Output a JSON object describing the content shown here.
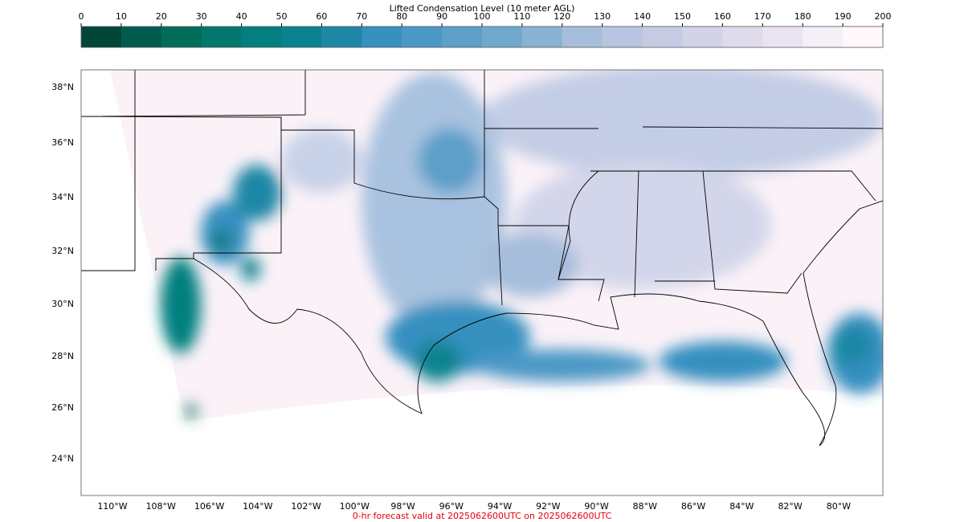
{
  "colorbar": {
    "title": "Lifted Condensation Level (10 meter AGL)",
    "ticks": [
      0,
      10,
      20,
      30,
      40,
      50,
      60,
      70,
      80,
      90,
      100,
      110,
      120,
      130,
      140,
      150,
      160,
      170,
      180,
      190,
      200
    ],
    "colors": [
      "#014636",
      "#015c50",
      "#016c59",
      "#02776c",
      "#027f7f",
      "#0a8390",
      "#1e87a6",
      "#3690c0",
      "#4b98c6",
      "#5c9fc9",
      "#71a8cd",
      "#89b2d4",
      "#a6bddb",
      "#b8c5e0",
      "#c7cae3",
      "#d3d3e8",
      "#e0daed",
      "#ebe3f1",
      "#f5eff7",
      "#fff7fb"
    ]
  },
  "map": {
    "lat_ticks": [
      {
        "value": 38,
        "label": "38°N"
      },
      {
        "value": 36,
        "label": "36°N"
      },
      {
        "value": 34,
        "label": "34°N"
      },
      {
        "value": 32,
        "label": "32°N"
      },
      {
        "value": 30,
        "label": "30°N"
      },
      {
        "value": 28,
        "label": "28°N"
      },
      {
        "value": 26,
        "label": "26°N"
      },
      {
        "value": 24,
        "label": "24°N"
      }
    ],
    "lon_ticks": [
      {
        "value": -110,
        "label": "110°W"
      },
      {
        "value": -108,
        "label": "108°W"
      },
      {
        "value": -106,
        "label": "106°W"
      },
      {
        "value": -104,
        "label": "104°W"
      },
      {
        "value": -102,
        "label": "102°W"
      },
      {
        "value": -100,
        "label": "100°W"
      },
      {
        "value": -98,
        "label": "98°W"
      },
      {
        "value": -96,
        "label": "96°W"
      },
      {
        "value": -94,
        "label": "94°W"
      },
      {
        "value": -92,
        "label": "92°W"
      },
      {
        "value": -90,
        "label": "90°W"
      },
      {
        "value": -88,
        "label": "88°W"
      },
      {
        "value": -86,
        "label": "86°W"
      },
      {
        "value": -84,
        "label": "84°W"
      },
      {
        "value": -82,
        "label": "82°W"
      },
      {
        "value": -80,
        "label": "80°W"
      }
    ]
  },
  "footer": "0-hr forecast valid at 2025062600UTC on 2025062600UTC"
}
